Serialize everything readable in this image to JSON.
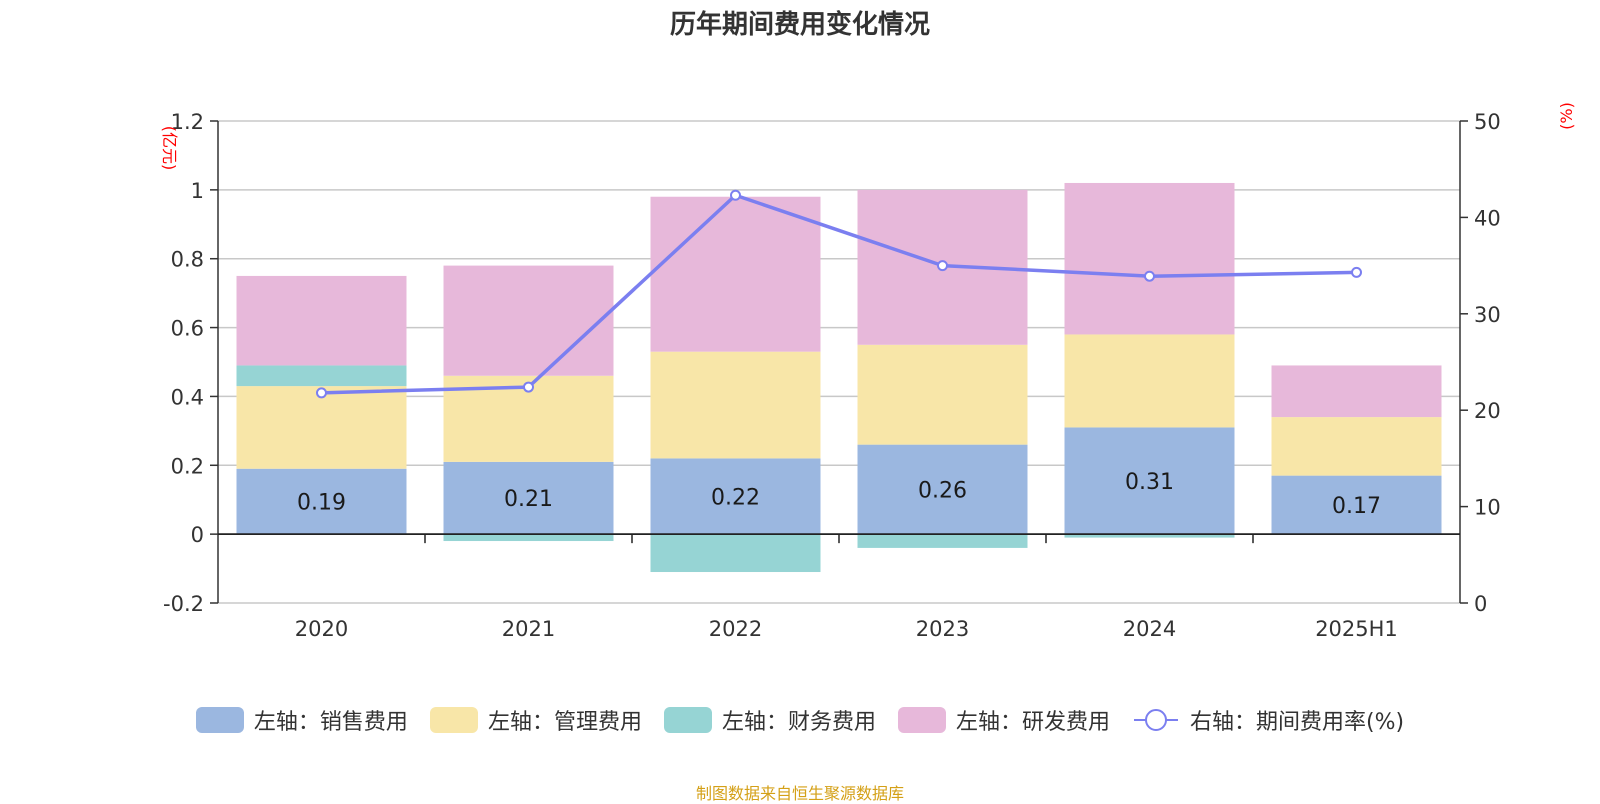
{
  "title": "历年期间费用变化情况",
  "footer_note": "制图数据来自恒生聚源数据库",
  "chart_data": {
    "type": "bar",
    "stacked": true,
    "categories": [
      "2020",
      "2021",
      "2022",
      "2023",
      "2024",
      "2025H1"
    ],
    "y_left": {
      "unit": "(亿元)",
      "ylim": [
        -0.2,
        1.2
      ],
      "ticks": [
        -0.2,
        0,
        0.2,
        0.4,
        0.6,
        0.8,
        1,
        1.2
      ],
      "tick_labels": [
        "-0.2",
        "0",
        "0.2",
        "0.4",
        "0.6",
        "0.8",
        "1",
        "1.2"
      ]
    },
    "y_right": {
      "unit": "(%)",
      "ylim": [
        0,
        50
      ],
      "ticks": [
        0,
        10,
        20,
        30,
        40,
        50
      ],
      "tick_labels": [
        "0",
        "10",
        "20",
        "30",
        "40",
        "50"
      ]
    },
    "grid": true,
    "legend_position": "bottom",
    "series": [
      {
        "name": "左轴：销售费用",
        "axis": "left",
        "color": "#9bb7e0",
        "values": [
          0.19,
          0.21,
          0.22,
          0.26,
          0.31,
          0.17
        ],
        "labels": [
          "0.19",
          "0.21",
          "0.22",
          "0.26",
          "0.31",
          "0.17"
        ]
      },
      {
        "name": "左轴：管理费用",
        "axis": "left",
        "color": "#f8e6a8",
        "values": [
          0.24,
          0.25,
          0.31,
          0.29,
          0.27,
          0.17
        ]
      },
      {
        "name": "左轴：财务费用",
        "axis": "left",
        "color": "#96d4d4",
        "values": [
          0.06,
          -0.02,
          -0.11,
          -0.04,
          -0.01,
          0.0
        ]
      },
      {
        "name": "左轴：研发费用",
        "axis": "left",
        "color": "#e7b8da",
        "values": [
          0.26,
          0.32,
          0.45,
          0.45,
          0.44,
          0.15
        ]
      },
      {
        "name": "右轴：期间费用率(%)",
        "axis": "right",
        "type": "line",
        "color": "#7b7ff0",
        "values": [
          21.8,
          22.4,
          42.3,
          35.0,
          33.9,
          34.3
        ]
      }
    ]
  }
}
